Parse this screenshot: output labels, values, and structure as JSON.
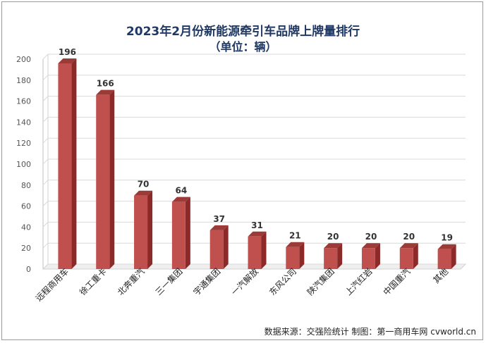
{
  "title": "2023年2月份新能源牵引车品牌上牌量排行",
  "subtitle": "（单位：辆）",
  "source": "数据来源：交强险统计  制图：第一商用车网 cvworld.cn",
  "colors": {
    "bar_front": "#c0504d",
    "bar_side": "#8b2a28",
    "bar_top": "#9c3a38",
    "grid": "#d9d9d9",
    "title": "#1f3864"
  },
  "chart_data": {
    "type": "bar",
    "title": "2023年2月份新能源牵引车品牌上牌量排行",
    "subtitle": "（单位：辆）",
    "categories": [
      "远程商用车",
      "徐工重卡",
      "北奔重汽",
      "三一集团",
      "宇通集团",
      "一汽解放",
      "东风公司",
      "陕汽集团",
      "上汽红岩",
      "中国重汽",
      "其他"
    ],
    "values": [
      196,
      166,
      70,
      64,
      37,
      31,
      21,
      20,
      20,
      20,
      19
    ],
    "yticks": [
      0,
      20,
      40,
      60,
      80,
      100,
      120,
      140,
      160,
      180,
      200
    ],
    "ylim": [
      0,
      200
    ],
    "grid": true,
    "legend": "none",
    "data_labels": true
  }
}
